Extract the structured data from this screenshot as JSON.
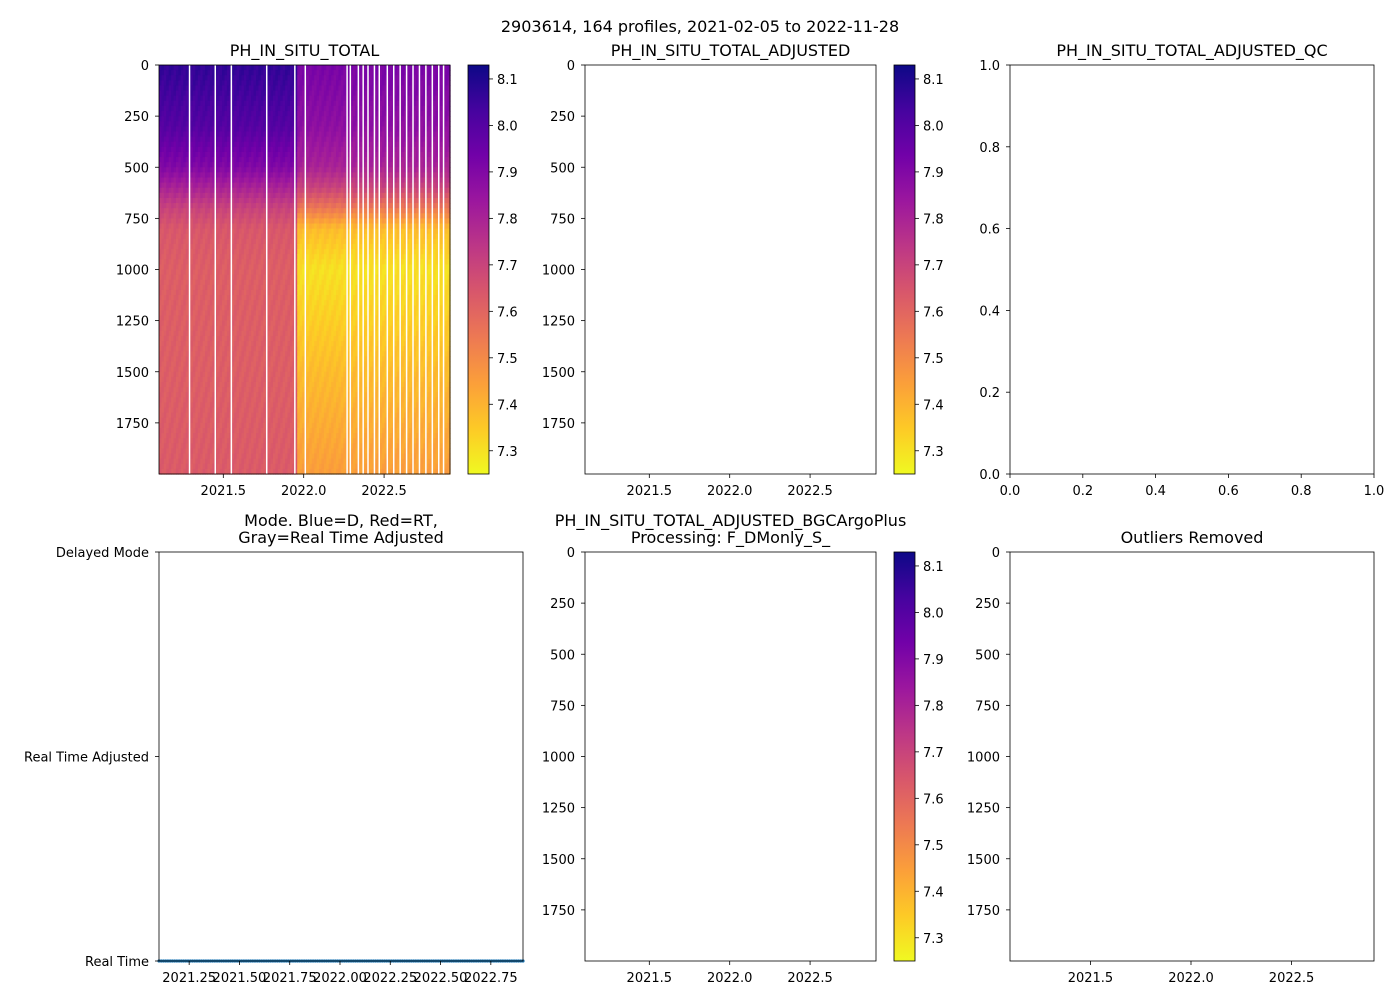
{
  "figure": {
    "suptitle": "2903614, 164 profiles, 2021-02-05 to 2022-11-28"
  },
  "colormap": {
    "name": "plasma_r",
    "stops": [
      "#f0f921",
      "#fdca26",
      "#fb9f3a",
      "#ed7953",
      "#d8576b",
      "#bd3786",
      "#9c179e",
      "#7201a8",
      "#46039f",
      "#0d0887"
    ]
  },
  "chart_data": [
    {
      "id": "ph",
      "type": "heatmap",
      "title": "PH_IN_SITU_TOTAL",
      "xlabel": "",
      "ylabel": "",
      "xlim": [
        2021.1,
        2022.91
      ],
      "ylim": [
        2000,
        0
      ],
      "xticks": [
        2021.5,
        2022.0,
        2022.5
      ],
      "xtick_labels": [
        "2021.5",
        "2022.0",
        "2022.5"
      ],
      "yticks": [
        0,
        250,
        500,
        750,
        1000,
        1250,
        1500,
        1750
      ],
      "ytick_labels": [
        "0",
        "250",
        "500",
        "750",
        "1000",
        "1250",
        "1500",
        "1750"
      ],
      "colorbar": {
        "vmin": 7.25,
        "vmax": 8.13,
        "ticks": [
          7.3,
          7.4,
          7.5,
          7.6,
          7.7,
          7.8,
          7.9,
          8.0,
          8.1
        ],
        "tick_labels": [
          "7.3",
          "7.4",
          "7.5",
          "7.6",
          "7.7",
          "7.8",
          "7.9",
          "8.0",
          "8.1"
        ]
      },
      "depth_profile_period1": {
        "time_range": [
          2021.1,
          2021.96
        ],
        "depths": [
          0,
          300,
          500,
          600,
          700,
          800,
          1000,
          1500,
          2000
        ],
        "values": [
          8.07,
          8.0,
          7.9,
          7.8,
          7.7,
          7.64,
          7.62,
          7.62,
          7.63
        ]
      },
      "depth_profile_period2": {
        "time_range": [
          2021.96,
          2022.91
        ],
        "depths": [
          0,
          300,
          500,
          600,
          700,
          800,
          1000,
          1500,
          2000
        ],
        "values": [
          7.92,
          7.87,
          7.8,
          7.7,
          7.55,
          7.38,
          7.3,
          7.38,
          7.45
        ]
      },
      "gap_times": [
        2021.29,
        2021.45,
        2021.55,
        2021.77,
        2021.945,
        2022.01,
        2022.27,
        2022.29,
        2022.34,
        2022.37,
        2022.4,
        2022.44,
        2022.47,
        2022.52,
        2022.56,
        2022.6,
        2022.64,
        2022.68,
        2022.72,
        2022.76,
        2022.8,
        2022.84,
        2022.87
      ]
    },
    {
      "id": "adj",
      "type": "heatmap",
      "title": "PH_IN_SITU_TOTAL_ADJUSTED",
      "xlim": [
        2021.1,
        2022.91
      ],
      "ylim": [
        2000,
        0
      ],
      "xticks": [
        2021.5,
        2022.0,
        2022.5
      ],
      "xtick_labels": [
        "2021.5",
        "2022.0",
        "2022.5"
      ],
      "yticks": [
        0,
        250,
        500,
        750,
        1000,
        1250,
        1500,
        1750
      ],
      "ytick_labels": [
        "0",
        "250",
        "500",
        "750",
        "1000",
        "1250",
        "1500",
        "1750"
      ],
      "values": [],
      "colorbar": {
        "vmin": 7.25,
        "vmax": 8.13,
        "ticks": [
          7.3,
          7.4,
          7.5,
          7.6,
          7.7,
          7.8,
          7.9,
          8.0,
          8.1
        ],
        "tick_labels": [
          "7.3",
          "7.4",
          "7.5",
          "7.6",
          "7.7",
          "7.8",
          "7.9",
          "8.0",
          "8.1"
        ]
      }
    },
    {
      "id": "qc",
      "type": "scatter",
      "title": "PH_IN_SITU_TOTAL_ADJUSTED_QC",
      "xlim": [
        0.0,
        1.0
      ],
      "ylim": [
        0.0,
        1.0
      ],
      "xticks": [
        0.0,
        0.2,
        0.4,
        0.6,
        0.8,
        1.0
      ],
      "xtick_labels": [
        "0.0",
        "0.2",
        "0.4",
        "0.6",
        "0.8",
        "1.0"
      ],
      "yticks": [
        0.0,
        0.2,
        0.4,
        0.6,
        0.8,
        1.0
      ],
      "ytick_labels": [
        "0.0",
        "0.2",
        "0.4",
        "0.6",
        "0.8",
        "1.0"
      ],
      "points": []
    },
    {
      "id": "mode",
      "type": "scatter",
      "title": "Mode. Blue=D, Red=RT,",
      "title_line2": "Gray=Real Time Adjusted",
      "xlim": [
        2021.1,
        2022.91
      ],
      "ylim": [
        0,
        2
      ],
      "xticks": [
        2021.25,
        2021.5,
        2021.75,
        2022.0,
        2022.25,
        2022.5,
        2022.75
      ],
      "xtick_labels": [
        "2021.25",
        "2021.50",
        "2021.75",
        "2022.00",
        "2022.25",
        "2022.50",
        "2022.75"
      ],
      "yticks": [
        0,
        1,
        2
      ],
      "ytick_labels": [
        "Real Time",
        "Real Time Adjusted",
        "Delayed Mode"
      ],
      "series": [
        {
          "name": "Real Time",
          "color": "#1f77b4",
          "y": 0,
          "x_start": 2021.1,
          "x_end": 2022.91,
          "count": 164
        }
      ]
    },
    {
      "id": "bgc",
      "type": "heatmap",
      "title": "PH_IN_SITU_TOTAL_ADJUSTED_BGCArgoPlus",
      "title_line2": "Processing: F_DMonly_S_",
      "xlim": [
        2021.1,
        2022.91
      ],
      "ylim": [
        2000,
        0
      ],
      "xticks": [
        2021.5,
        2022.0,
        2022.5
      ],
      "xtick_labels": [
        "2021.5",
        "2022.0",
        "2022.5"
      ],
      "yticks": [
        0,
        250,
        500,
        750,
        1000,
        1250,
        1500,
        1750
      ],
      "ytick_labels": [
        "0",
        "250",
        "500",
        "750",
        "1000",
        "1250",
        "1500",
        "1750"
      ],
      "values": [],
      "colorbar": {
        "vmin": 7.25,
        "vmax": 8.13,
        "ticks": [
          7.3,
          7.4,
          7.5,
          7.6,
          7.7,
          7.8,
          7.9,
          8.0,
          8.1
        ],
        "tick_labels": [
          "7.3",
          "7.4",
          "7.5",
          "7.6",
          "7.7",
          "7.8",
          "7.9",
          "8.0",
          "8.1"
        ]
      }
    },
    {
      "id": "out",
      "type": "scatter",
      "title": "Outliers Removed",
      "xlim": [
        2021.1,
        2022.91
      ],
      "ylim": [
        2000,
        0
      ],
      "xticks": [
        2021.5,
        2022.0,
        2022.5
      ],
      "xtick_labels": [
        "2021.5",
        "2022.0",
        "2022.5"
      ],
      "yticks": [
        0,
        250,
        500,
        750,
        1000,
        1250,
        1500,
        1750
      ],
      "ytick_labels": [
        "0",
        "250",
        "500",
        "750",
        "1000",
        "1250",
        "1500",
        "1750"
      ],
      "points": []
    }
  ]
}
